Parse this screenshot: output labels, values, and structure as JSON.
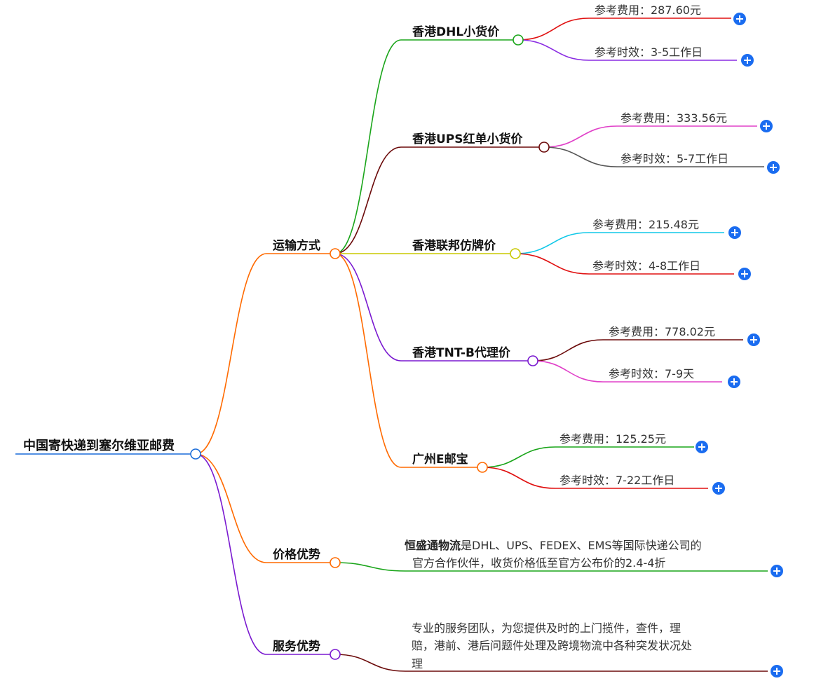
{
  "root": {
    "label": "中国寄快递到塞尔维亚邮费",
    "color": "#1a6cd8"
  },
  "branches": [
    {
      "label": "运输方式",
      "color": "#ff6a00",
      "children": [
        {
          "label": "香港DHL小货价",
          "color": "#1aa51a",
          "fee": "参考费用：287.60元",
          "time": "参考时效：3-5工作日"
        },
        {
          "label": "香港UPS红单小货价",
          "color": "#6b0a0a",
          "fee": "参考费用：333.56元",
          "time": "参考时效：5-7工作日"
        },
        {
          "label": "香港联邦仿牌价",
          "color": "#c8c800",
          "fee": "参考费用：215.48元",
          "time": "参考时效：4-8工作日"
        },
        {
          "label": "香港TNT-B代理价",
          "color": "#7a1ad0",
          "fee": "参考费用：778.02元",
          "time": "参考时效：7-9天"
        },
        {
          "label": "广州E邮宝",
          "color": "#ff6a00",
          "fee": "参考费用：125.25元",
          "time": "参考时效：7-22工作日"
        }
      ]
    },
    {
      "label": "价格优势",
      "color": "#ff6a00",
      "desc_bold": "恒盛通物流",
      "desc_lines": [
        "是DHL、UPS、FEDEX、EMS等国际快递公司的",
        "官方合作伙伴，收货价格低至官方公布价的2.4-4折"
      ]
    },
    {
      "label": "服务优势",
      "color": "#7a1ad0",
      "desc_lines": [
        "专业的服务团队，为您提供及时的上门揽件，查件，理",
        "赔，港前、港后问题件处理及跨境物流中各种突发状况处",
        "理"
      ]
    }
  ],
  "icons": {
    "expand": "plus-circle-icon"
  }
}
